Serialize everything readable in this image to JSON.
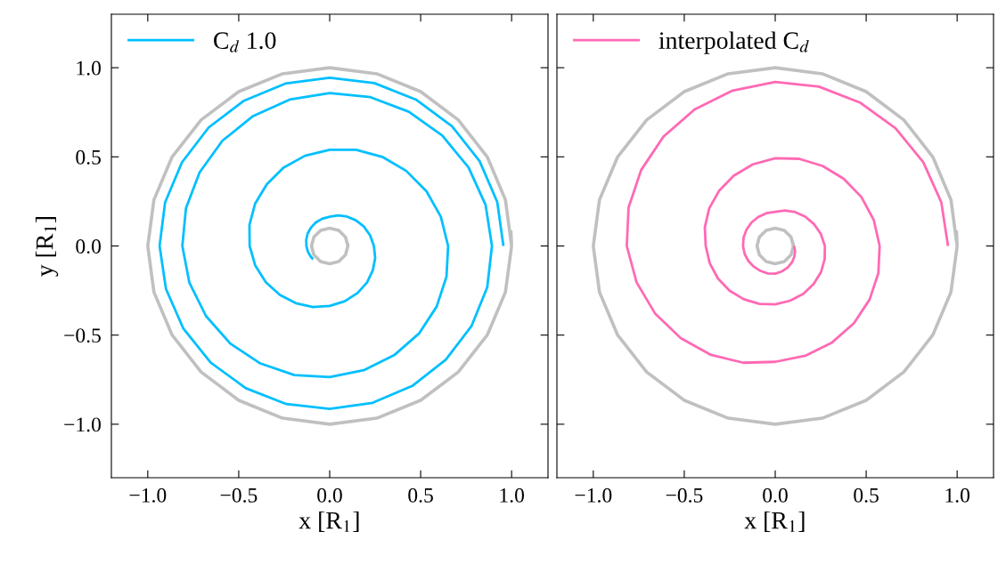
{
  "chart_data": [
    {
      "type": "line",
      "xlabel": "x [R$_{1}$]",
      "ylabel": "y [R$_{1}$]",
      "legend": "top left",
      "grid": false,
      "marker": "none",
      "line_style": "solid",
      "xlim": [
        -1.2,
        1.2
      ],
      "ylim": [
        -1.3,
        1.3
      ],
      "xticks": [
        {
          "value": -1.0,
          "label": "−1.0"
        },
        {
          "value": -0.5,
          "label": "−0.5"
        },
        {
          "value": 0.0,
          "label": "0.0"
        },
        {
          "value": 0.5,
          "label": "0.5"
        },
        {
          "value": 1.0,
          "label": "1.0"
        }
      ],
      "yticks": [
        {
          "value": -1.0,
          "label": "−1.0"
        },
        {
          "value": -0.5,
          "label": "−0.5"
        },
        {
          "value": 0.0,
          "label": "0.0"
        },
        {
          "value": 0.5,
          "label": "0.5"
        },
        {
          "value": 1.0,
          "label": "1.0"
        }
      ],
      "series": [
        {
          "color": "#c0c0c0",
          "x": [
            1.0,
            0.966,
            0.866,
            0.707,
            0.5,
            0.259,
            0.0,
            -0.259,
            -0.5,
            -0.707,
            -0.866,
            -0.966,
            -1.0,
            -0.966,
            -0.866,
            -0.707,
            -0.5,
            -0.259,
            0.0,
            0.259,
            0.5,
            0.707,
            0.866,
            0.966,
            1.0,
            0.996
          ],
          "values": [
            0.0,
            0.259,
            0.5,
            0.707,
            0.866,
            0.966,
            1.0,
            0.966,
            0.866,
            0.707,
            0.5,
            0.259,
            0.0,
            -0.259,
            -0.5,
            -0.707,
            -0.866,
            -0.966,
            -1.0,
            -0.966,
            -0.866,
            -0.707,
            -0.5,
            -0.259,
            0.0,
            0.087
          ]
        },
        {
          "color": "#c0c0c0",
          "x": [
            0.1,
            0.087,
            0.05,
            0.0,
            -0.05,
            -0.087,
            -0.1,
            -0.087,
            -0.05,
            0.0,
            0.05,
            0.087,
            0.1,
            0.098
          ],
          "values": [
            0.0,
            0.05,
            0.087,
            0.1,
            0.087,
            0.05,
            0.0,
            -0.05,
            -0.087,
            -0.1,
            -0.087,
            -0.05,
            0.0,
            0.017
          ]
        },
        {
          "name": "C$_{d}$ 1.0",
          "color": "#00bfff",
          "x": [
            0.955,
            0.921,
            0.824,
            0.672,
            0.474,
            0.245,
            0.0,
            -0.244,
            -0.471,
            -0.665,
            -0.812,
            -0.905,
            -0.935,
            -0.9,
            -0.804,
            -0.654,
            -0.461,
            -0.238,
            0.0,
            0.236,
            0.454,
            0.638,
            0.779,
            0.866,
            0.892,
            0.857,
            0.763,
            0.619,
            0.435,
            0.224,
            0.0,
            -0.22,
            -0.421,
            -0.59,
            -0.715,
            -0.79,
            -0.81,
            -0.771,
            -0.68,
            -0.547,
            -0.381,
            -0.194,
            0.0,
            0.187,
            0.354,
            0.491,
            0.588,
            0.642,
            0.651,
            0.611,
            0.532,
            0.421,
            0.289,
            0.145,
            0.0,
            -0.136,
            -0.254,
            -0.346,
            -0.41,
            -0.441,
            -0.44,
            -0.409,
            -0.351,
            -0.274,
            -0.186,
            -0.092,
            0.0,
            0.083,
            0.153,
            0.205,
            0.237,
            0.25,
            0.243,
            0.222,
            0.188,
            0.144,
            0.095,
            0.046,
            0.0,
            -0.041,
            -0.076,
            -0.103,
            -0.121,
            -0.129,
            -0.128,
            -0.12,
            -0.104,
            -0.091
          ],
          "values": [
            0.0,
            0.247,
            0.476,
            0.672,
            0.821,
            0.914,
            0.944,
            0.911,
            0.815,
            0.665,
            0.469,
            0.243,
            0.0,
            -0.241,
            -0.464,
            -0.654,
            -0.798,
            -0.887,
            -0.914,
            -0.88,
            -0.785,
            -0.638,
            -0.45,
            -0.232,
            0.0,
            0.23,
            0.441,
            0.619,
            0.753,
            0.835,
            0.858,
            0.821,
            0.729,
            0.59,
            0.413,
            0.212,
            0.0,
            -0.207,
            -0.393,
            -0.547,
            -0.659,
            -0.724,
            -0.736,
            -0.697,
            -0.613,
            -0.491,
            -0.34,
            -0.172,
            0.0,
            0.164,
            0.307,
            0.421,
            0.5,
            0.54,
            0.54,
            0.506,
            0.439,
            0.346,
            0.237,
            0.118,
            0.0,
            -0.11,
            -0.203,
            -0.274,
            -0.321,
            -0.342,
            -0.336,
            -0.31,
            -0.264,
            -0.205,
            -0.137,
            -0.067,
            0.0,
            0.06,
            0.109,
            0.144,
            0.165,
            0.171,
            0.164,
            0.153,
            0.132,
            0.103,
            0.07,
            0.035,
            0.0,
            -0.032,
            -0.06,
            -0.075
          ]
        }
      ]
    },
    {
      "type": "line",
      "xlabel": "x [R$_{1}$]",
      "legend": "top left",
      "grid": false,
      "marker": "none",
      "line_style": "solid",
      "tick_labels": "x",
      "xlim": [
        -1.2,
        1.2
      ],
      "ylim": [
        -1.3,
        1.3
      ],
      "xticks": [
        {
          "value": -1.0,
          "label": "−1.0"
        },
        {
          "value": -0.5,
          "label": "−0.5"
        },
        {
          "value": 0.0,
          "label": "0.0"
        },
        {
          "value": 0.5,
          "label": "0.5"
        },
        {
          "value": 1.0,
          "label": "1.0"
        }
      ],
      "yticks": [
        {
          "value": -1.0,
          "label": null
        },
        {
          "value": -0.5,
          "label": null
        },
        {
          "value": 0.0,
          "label": null
        },
        {
          "value": 0.5,
          "label": null
        },
        {
          "value": 1.0,
          "label": null
        }
      ],
      "series": [
        {
          "color": "#c0c0c0",
          "x": [
            1.0,
            0.966,
            0.866,
            0.707,
            0.5,
            0.259,
            0.0,
            -0.259,
            -0.5,
            -0.707,
            -0.866,
            -0.966,
            -1.0,
            -0.966,
            -0.866,
            -0.707,
            -0.5,
            -0.259,
            0.0,
            0.259,
            0.5,
            0.707,
            0.866,
            0.966,
            1.0,
            0.996
          ],
          "values": [
            0.0,
            0.259,
            0.5,
            0.707,
            0.866,
            0.966,
            1.0,
            0.966,
            0.866,
            0.707,
            0.5,
            0.259,
            0.0,
            -0.259,
            -0.5,
            -0.707,
            -0.866,
            -0.966,
            -1.0,
            -0.966,
            -0.866,
            -0.707,
            -0.5,
            -0.259,
            0.0,
            0.087
          ]
        },
        {
          "color": "#c0c0c0",
          "x": [
            0.1,
            0.087,
            0.05,
            0.0,
            -0.05,
            -0.087,
            -0.1,
            -0.087,
            -0.05,
            0.0,
            0.05,
            0.087,
            0.1,
            0.098
          ],
          "values": [
            0.0,
            0.05,
            0.087,
            0.1,
            0.087,
            0.05,
            0.0,
            -0.05,
            -0.087,
            -0.1,
            -0.087,
            -0.05,
            0.0,
            0.017
          ]
        },
        {
          "name": "interpolated C$_{d}$",
          "color": "#ff69b4",
          "x": [
            0.95,
            0.913,
            0.814,
            0.661,
            0.465,
            0.24,
            0.0,
            -0.234,
            -0.443,
            -0.614,
            -0.737,
            -0.806,
            -0.816,
            -0.762,
            -0.659,
            -0.518,
            -0.353,
            -0.176,
            0.0,
            0.165,
            0.313,
            0.433,
            0.519,
            0.567,
            0.574,
            0.542,
            0.474,
            0.377,
            0.26,
            0.131,
            0.0,
            -0.123,
            -0.228,
            -0.309,
            -0.363,
            -0.387,
            -0.382,
            -0.36,
            -0.315,
            -0.251,
            -0.173,
            -0.087,
            0.0,
            0.082,
            0.155,
            0.212,
            0.252,
            0.272,
            0.273,
            0.251,
            0.213,
            0.165,
            0.11,
            0.053,
            0.0,
            -0.049,
            -0.094,
            -0.131,
            -0.158,
            -0.174,
            -0.177,
            -0.168,
            -0.147,
            -0.117,
            -0.081,
            -0.041,
            0.0,
            0.038,
            0.069,
            0.092,
            0.105,
            0.109,
            0.104
          ],
          "values": [
            0.0,
            0.245,
            0.47,
            0.661,
            0.805,
            0.894,
            0.92,
            0.872,
            0.766,
            0.614,
            0.426,
            0.216,
            0.0,
            -0.204,
            -0.381,
            -0.518,
            -0.611,
            -0.655,
            -0.65,
            -0.616,
            -0.541,
            -0.433,
            -0.3,
            -0.152,
            0.0,
            0.145,
            0.274,
            0.377,
            0.449,
            0.489,
            0.492,
            0.458,
            0.394,
            0.309,
            0.21,
            0.104,
            0.0,
            -0.097,
            -0.182,
            -0.251,
            -0.299,
            -0.325,
            -0.327,
            -0.307,
            -0.268,
            -0.212,
            -0.146,
            -0.073,
            0.0,
            0.067,
            0.123,
            0.165,
            0.19,
            0.199,
            0.192,
            0.184,
            0.162,
            0.131,
            0.091,
            0.047,
            0.0,
            -0.045,
            -0.085,
            -0.117,
            -0.14,
            -0.154,
            -0.155,
            -0.142,
            -0.12,
            -0.092,
            -0.061,
            -0.029,
            0.0
          ]
        }
      ]
    }
  ]
}
